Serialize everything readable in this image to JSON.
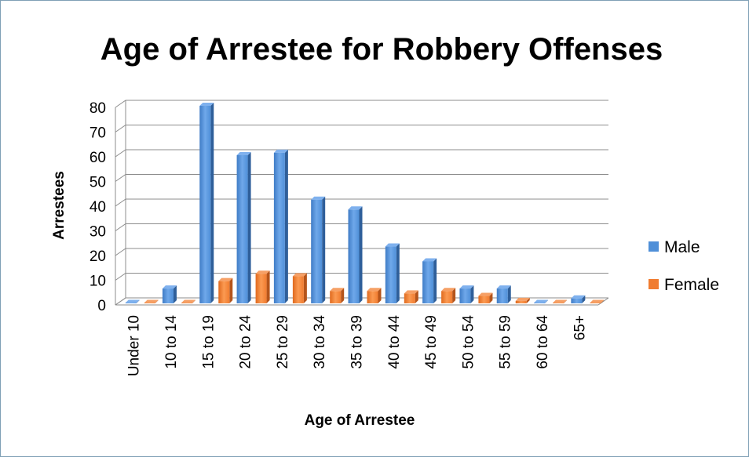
{
  "chart_data": {
    "type": "bar",
    "title": "Age of Arrestee for Robbery Offenses",
    "xlabel": "Age of Arrestee",
    "ylabel": "Arrestees",
    "ylim": [
      0,
      80
    ],
    "yticks": [
      0,
      10,
      20,
      30,
      40,
      50,
      60,
      70,
      80
    ],
    "categories": [
      "Under 10",
      "10 to 14",
      "15 to 19",
      "20 to 24",
      "25 to 29",
      "30 to 34",
      "35 to 39",
      "40 to 44",
      "45 to 49",
      "50 to 54",
      "55 to 59",
      "60 to 64",
      "65+"
    ],
    "series": [
      {
        "name": "Male",
        "color": "#4f8fd8",
        "values": [
          0,
          6,
          80,
          60,
          61,
          42,
          38,
          23,
          17,
          6,
          6,
          0,
          2
        ]
      },
      {
        "name": "Female",
        "color": "#f07c30",
        "values": [
          0,
          0,
          9,
          12,
          11,
          5,
          5,
          4,
          5,
          3,
          1,
          0,
          0
        ]
      }
    ],
    "grid": true,
    "legend_position": "right",
    "style": "3d-clustered-column"
  }
}
